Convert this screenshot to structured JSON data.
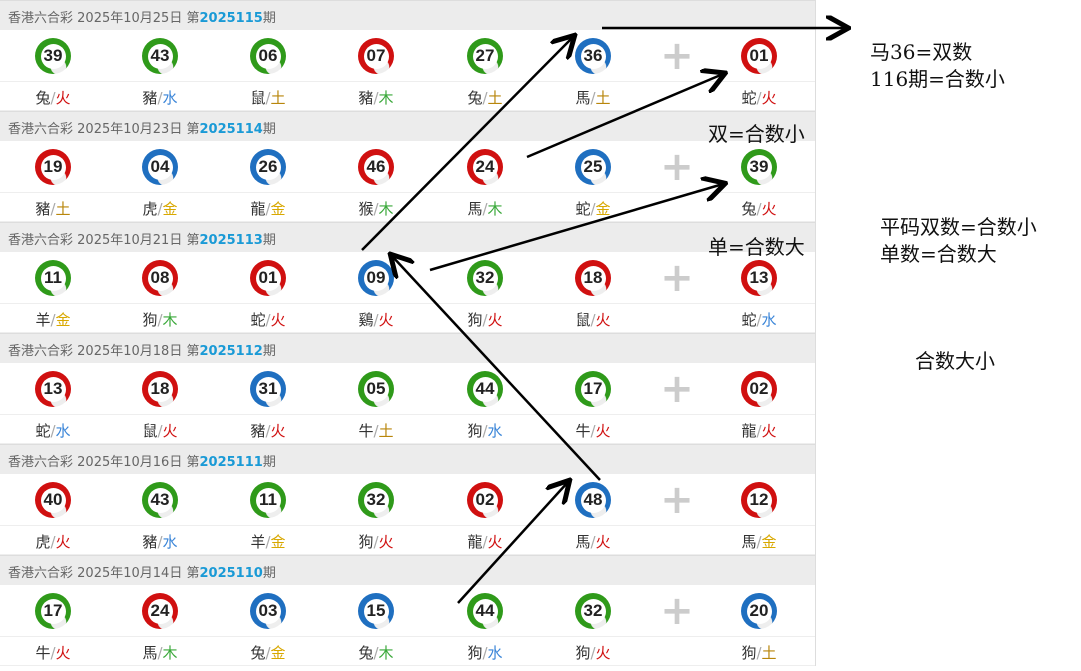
{
  "lottery_name": "香港六合彩",
  "draws": [
    {
      "date": "2025年10月25日",
      "prefix": "第",
      "period": "2025115",
      "suffix": "期",
      "balls": [
        {
          "n": "39",
          "c": "green",
          "z": "兔",
          "e": "火"
        },
        {
          "n": "43",
          "c": "green",
          "z": "豬",
          "e": "水"
        },
        {
          "n": "06",
          "c": "green",
          "z": "鼠",
          "e": "土"
        },
        {
          "n": "07",
          "c": "red",
          "z": "豬",
          "e": "木"
        },
        {
          "n": "27",
          "c": "green",
          "z": "兔",
          "e": "土"
        },
        {
          "n": "36",
          "c": "blue",
          "z": "馬",
          "e": "土"
        },
        {
          "n": "01",
          "c": "red",
          "z": "蛇",
          "e": "火"
        }
      ]
    },
    {
      "date": "2025年10月23日",
      "prefix": "第",
      "period": "2025114",
      "suffix": "期",
      "balls": [
        {
          "n": "19",
          "c": "red",
          "z": "豬",
          "e": "土"
        },
        {
          "n": "04",
          "c": "blue",
          "z": "虎",
          "e": "金"
        },
        {
          "n": "26",
          "c": "blue",
          "z": "龍",
          "e": "金"
        },
        {
          "n": "46",
          "c": "red",
          "z": "猴",
          "e": "木"
        },
        {
          "n": "24",
          "c": "red",
          "z": "馬",
          "e": "木"
        },
        {
          "n": "25",
          "c": "blue",
          "z": "蛇",
          "e": "金"
        },
        {
          "n": "39",
          "c": "green",
          "z": "兔",
          "e": "火"
        }
      ]
    },
    {
      "date": "2025年10月21日",
      "prefix": "第",
      "period": "2025113",
      "suffix": "期",
      "balls": [
        {
          "n": "11",
          "c": "green",
          "z": "羊",
          "e": "金"
        },
        {
          "n": "08",
          "c": "red",
          "z": "狗",
          "e": "木"
        },
        {
          "n": "01",
          "c": "red",
          "z": "蛇",
          "e": "火"
        },
        {
          "n": "09",
          "c": "blue",
          "z": "鷄",
          "e": "火"
        },
        {
          "n": "32",
          "c": "green",
          "z": "狗",
          "e": "火"
        },
        {
          "n": "18",
          "c": "red",
          "z": "鼠",
          "e": "火"
        },
        {
          "n": "13",
          "c": "red",
          "z": "蛇",
          "e": "水"
        }
      ]
    },
    {
      "date": "2025年10月18日",
      "prefix": "第",
      "period": "2025112",
      "suffix": "期",
      "balls": [
        {
          "n": "13",
          "c": "red",
          "z": "蛇",
          "e": "水"
        },
        {
          "n": "18",
          "c": "red",
          "z": "鼠",
          "e": "火"
        },
        {
          "n": "31",
          "c": "blue",
          "z": "豬",
          "e": "火"
        },
        {
          "n": "05",
          "c": "green",
          "z": "牛",
          "e": "土"
        },
        {
          "n": "44",
          "c": "green",
          "z": "狗",
          "e": "水"
        },
        {
          "n": "17",
          "c": "green",
          "z": "牛",
          "e": "火"
        },
        {
          "n": "02",
          "c": "red",
          "z": "龍",
          "e": "火"
        }
      ]
    },
    {
      "date": "2025年10月16日",
      "prefix": "第",
      "period": "2025111",
      "suffix": "期",
      "balls": [
        {
          "n": "40",
          "c": "red",
          "z": "虎",
          "e": "火"
        },
        {
          "n": "43",
          "c": "green",
          "z": "豬",
          "e": "水"
        },
        {
          "n": "11",
          "c": "green",
          "z": "羊",
          "e": "金"
        },
        {
          "n": "32",
          "c": "green",
          "z": "狗",
          "e": "火"
        },
        {
          "n": "02",
          "c": "red",
          "z": "龍",
          "e": "火"
        },
        {
          "n": "48",
          "c": "blue",
          "z": "馬",
          "e": "火"
        },
        {
          "n": "12",
          "c": "red",
          "z": "馬",
          "e": "金"
        }
      ]
    },
    {
      "date": "2025年10月14日",
      "prefix": "第",
      "period": "2025110",
      "suffix": "期",
      "balls": [
        {
          "n": "17",
          "c": "green",
          "z": "牛",
          "e": "火"
        },
        {
          "n": "24",
          "c": "red",
          "z": "馬",
          "e": "木"
        },
        {
          "n": "03",
          "c": "blue",
          "z": "兔",
          "e": "金"
        },
        {
          "n": "15",
          "c": "blue",
          "z": "兔",
          "e": "木"
        },
        {
          "n": "44",
          "c": "green",
          "z": "狗",
          "e": "水"
        },
        {
          "n": "32",
          "c": "green",
          "z": "狗",
          "e": "火"
        },
        {
          "n": "20",
          "c": "blue",
          "z": "狗",
          "e": "土"
        }
      ]
    }
  ],
  "plus_sign": "+",
  "separator": "/",
  "annotations": {
    "horse36": "马36=双数",
    "next_period": "116期=合数小",
    "even": "双=合数小",
    "odd": "单=合数大",
    "flat_even": "平码双数=合数小",
    "flat_odd": "单数=合数大",
    "topic": "合数大小"
  }
}
